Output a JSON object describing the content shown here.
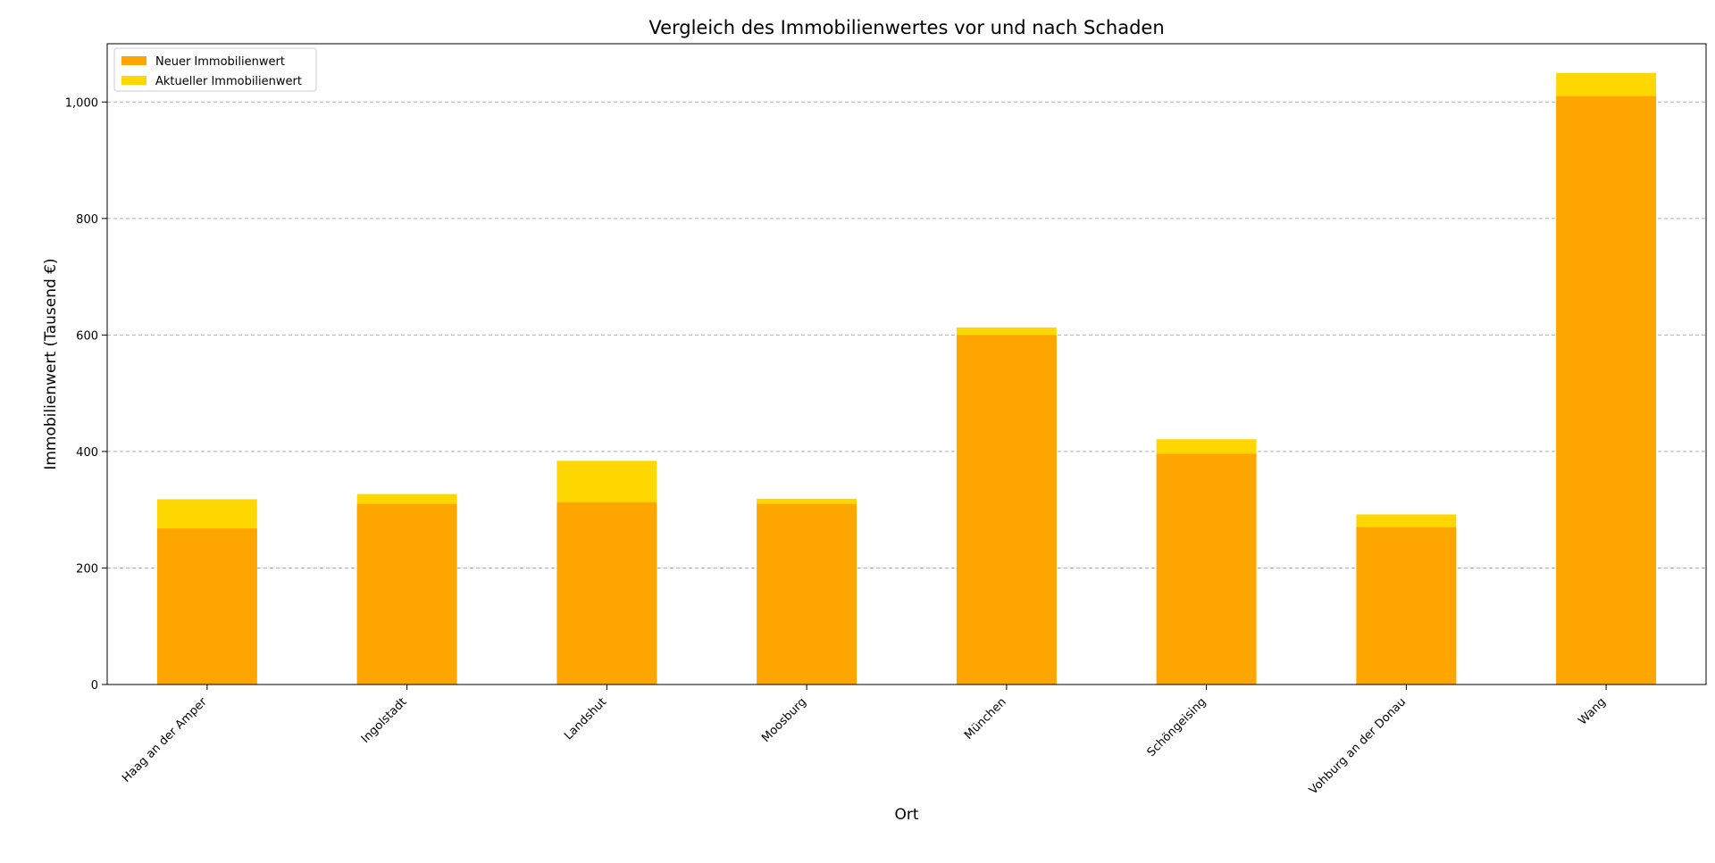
{
  "chart_data": {
    "type": "bar",
    "title": "Vergleich des Immobilienwertes vor und nach Schaden",
    "xlabel": "Ort",
    "ylabel": "Immobilienwert (Tausend €)",
    "ylim": [
      0,
      1100
    ],
    "yticks": [
      0,
      200,
      400,
      600,
      800,
      1000
    ],
    "ytick_labels": [
      "0",
      "200",
      "400",
      "600",
      "800",
      "1,000"
    ],
    "grid": "y, dashed",
    "legend_position": "upper-left",
    "categories": [
      "Haag an der Amper",
      "Ingolstadt",
      "Landshut",
      "Moosburg",
      "München",
      "Schöngeising",
      "Vohburg an der Donau",
      "Wang"
    ],
    "series": [
      {
        "name": "Aktueller Immobilienwert",
        "color": "#FFD700",
        "values": [
          318,
          327,
          384,
          319,
          613,
          421,
          292,
          1050
        ]
      },
      {
        "name": "Neuer Immobilienwert",
        "color": "#FFA500",
        "values": [
          268,
          310,
          313,
          310,
          600,
          396,
          270,
          1010
        ]
      }
    ]
  }
}
